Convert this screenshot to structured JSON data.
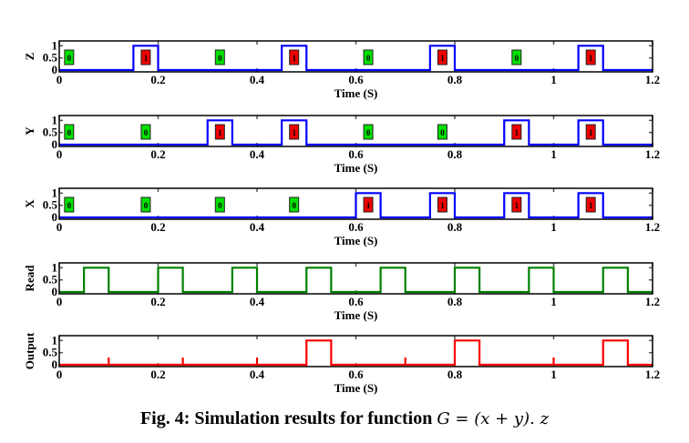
{
  "chart_data": [
    {
      "type": "line",
      "ylabel": "Z",
      "xlabel": "Time (S)",
      "xlim": [
        0,
        1.2
      ],
      "ylim": [
        0,
        1.2
      ],
      "xticks": [
        "0",
        "0.2",
        "0.4",
        "0.6",
        "0.8",
        "1",
        "1.2"
      ],
      "yticks": [
        "0",
        "0.5",
        "1"
      ],
      "color": "#0000ff",
      "pulses": [
        [
          0.15,
          0.2
        ],
        [
          0.45,
          0.5
        ],
        [
          0.75,
          0.8
        ],
        [
          1.05,
          1.1
        ]
      ],
      "badges": [
        {
          "t": 0.02,
          "v": "0"
        },
        {
          "t": 0.175,
          "v": "1"
        },
        {
          "t": 0.325,
          "v": "0"
        },
        {
          "t": 0.475,
          "v": "1"
        },
        {
          "t": 0.625,
          "v": "0"
        },
        {
          "t": 0.775,
          "v": "1"
        },
        {
          "t": 0.925,
          "v": "0"
        },
        {
          "t": 1.075,
          "v": "1"
        }
      ]
    },
    {
      "type": "line",
      "ylabel": "Y",
      "xlabel": "Time (S)",
      "xlim": [
        0,
        1.2
      ],
      "ylim": [
        0,
        1.2
      ],
      "xticks": [
        "0",
        "0.2",
        "0.4",
        "0.6",
        "0.8",
        "1",
        "1.2"
      ],
      "yticks": [
        "0",
        "0.5",
        "1"
      ],
      "color": "#0000ff",
      "pulses": [
        [
          0.3,
          0.35
        ],
        [
          0.45,
          0.5
        ],
        [
          0.9,
          0.95
        ],
        [
          1.05,
          1.1
        ]
      ],
      "badges": [
        {
          "t": 0.02,
          "v": "0"
        },
        {
          "t": 0.175,
          "v": "0"
        },
        {
          "t": 0.325,
          "v": "1"
        },
        {
          "t": 0.475,
          "v": "1"
        },
        {
          "t": 0.625,
          "v": "0"
        },
        {
          "t": 0.775,
          "v": "0"
        },
        {
          "t": 0.925,
          "v": "1"
        },
        {
          "t": 1.075,
          "v": "1"
        }
      ]
    },
    {
      "type": "line",
      "ylabel": "X",
      "xlabel": "Time (S)",
      "xlim": [
        0,
        1.2
      ],
      "ylim": [
        0,
        1.2
      ],
      "xticks": [
        "0",
        "0.2",
        "0.4",
        "0.6",
        "0.8",
        "1",
        "1.2"
      ],
      "yticks": [
        "0",
        "0.5",
        "1"
      ],
      "color": "#0000ff",
      "pulses": [
        [
          0.6,
          0.65
        ],
        [
          0.75,
          0.8
        ],
        [
          0.9,
          0.95
        ],
        [
          1.05,
          1.1
        ]
      ],
      "badges": [
        {
          "t": 0.02,
          "v": "0"
        },
        {
          "t": 0.175,
          "v": "0"
        },
        {
          "t": 0.325,
          "v": "0"
        },
        {
          "t": 0.475,
          "v": "0"
        },
        {
          "t": 0.625,
          "v": "1"
        },
        {
          "t": 0.775,
          "v": "1"
        },
        {
          "t": 0.925,
          "v": "1"
        },
        {
          "t": 1.075,
          "v": "1"
        }
      ]
    },
    {
      "type": "line",
      "ylabel": "Read",
      "xlabel": "Time (S)",
      "xlim": [
        0,
        1.2
      ],
      "ylim": [
        0,
        1.2
      ],
      "xticks": [
        "0",
        "0.2",
        "0.4",
        "0.6",
        "0.8",
        "1",
        "1.2"
      ],
      "yticks": [
        "0",
        "0.5",
        "1"
      ],
      "color": "#008000",
      "pulses": [
        [
          0.05,
          0.1
        ],
        [
          0.2,
          0.25
        ],
        [
          0.35,
          0.4
        ],
        [
          0.5,
          0.55
        ],
        [
          0.65,
          0.7
        ],
        [
          0.8,
          0.85
        ],
        [
          0.95,
          1.0
        ],
        [
          1.1,
          1.15
        ]
      ],
      "badges": []
    },
    {
      "type": "line",
      "ylabel": "Output",
      "xlabel": "Time (S)",
      "xlim": [
        0,
        1.2
      ],
      "ylim": [
        0,
        1.2
      ],
      "xticks": [
        "0",
        "0.2",
        "0.4",
        "0.6",
        "0.8",
        "1",
        "1.2"
      ],
      "yticks": [
        "0",
        "0.5",
        "1"
      ],
      "color": "#ff0000",
      "pulses": [
        [
          0.5,
          0.55
        ],
        [
          0.8,
          0.85
        ],
        [
          1.1,
          1.15
        ]
      ],
      "spikes": [
        {
          "t": 0.1,
          "v": 0.3
        },
        {
          "t": 0.25,
          "v": 0.3
        },
        {
          "t": 0.4,
          "v": 0.3
        },
        {
          "t": 0.7,
          "v": 0.3
        },
        {
          "t": 1.0,
          "v": 0.3
        }
      ],
      "badges": []
    }
  ],
  "caption": {
    "text": "Fig. 4: Simulation results for function ",
    "math": "G = (x + y). z"
  },
  "colors": {
    "badge_zero": "#00e000",
    "badge_one": "#ee0000"
  }
}
